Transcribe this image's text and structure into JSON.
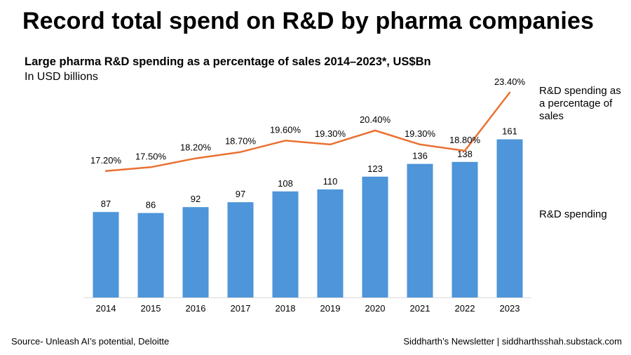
{
  "page": {
    "title": "Record total spend on R&D by pharma companies",
    "source": "Source- Unleash AI’s potential, Deloitte",
    "credit": "Siddharth’s Newsletter | siddharthsshah.substack.com"
  },
  "chart_data": {
    "type": "bar",
    "title": "Large pharma R&D spending as a percentage of sales 2014–2023*, US$Bn",
    "subtitle": "In USD billions",
    "categories": [
      "2014",
      "2015",
      "2016",
      "2017",
      "2018",
      "2019",
      "2020",
      "2021",
      "2022",
      "2023"
    ],
    "series": [
      {
        "name": "R&D spending",
        "type": "bar",
        "color": "#4e95d9",
        "values": [
          87,
          86,
          92,
          97,
          108,
          110,
          123,
          136,
          138,
          161
        ],
        "labels": [
          "87",
          "86",
          "92",
          "97",
          "108",
          "110",
          "123",
          "136",
          "138",
          "161"
        ]
      },
      {
        "name": "R&D spending as a percentage of sales",
        "type": "line",
        "color": "#e97132",
        "values": [
          17.2,
          17.5,
          18.2,
          18.7,
          19.6,
          19.3,
          20.4,
          19.3,
          18.8,
          23.4
        ],
        "labels": [
          "17.20%",
          "17.50%",
          "18.20%",
          "18.70%",
          "19.60%",
          "19.30%",
          "20.40%",
          "19.30%",
          "18.80%",
          "23.40%"
        ]
      }
    ],
    "legend": {
      "line_label": "R&D spending as a percentage of sales",
      "bar_label": "R&D spending",
      "placement": "right"
    },
    "axis_color": "#d9d9d9",
    "bar_ylim": [
      0,
      200
    ],
    "line_ylim": [
      12.2,
      24.5
    ],
    "grid": false
  }
}
